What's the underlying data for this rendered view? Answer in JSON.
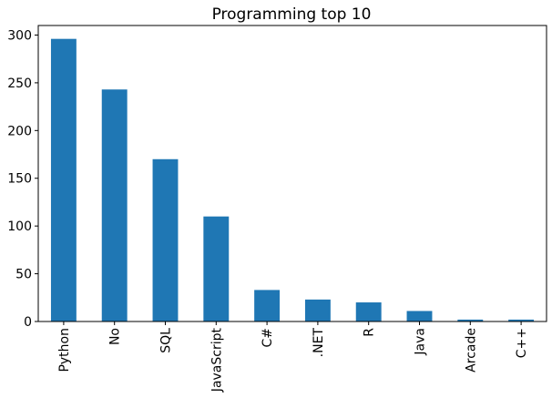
{
  "chart_data": {
    "type": "bar",
    "title": "Programming top 10",
    "xlabel": "",
    "ylabel": "",
    "categories": [
      "Python",
      "No",
      "SQL",
      "JavaScript",
      "C#",
      ".NET",
      "R",
      "Java",
      "Arcade",
      "C++"
    ],
    "values": [
      296,
      243,
      170,
      110,
      33,
      23,
      20,
      11,
      2,
      2
    ],
    "ylim": [
      0,
      310
    ],
    "yticks": [
      0,
      50,
      100,
      150,
      200,
      250,
      300
    ],
    "grid": false,
    "legend": "none",
    "bar_color": "#1f77b4",
    "tick_label_rotation": -90
  }
}
